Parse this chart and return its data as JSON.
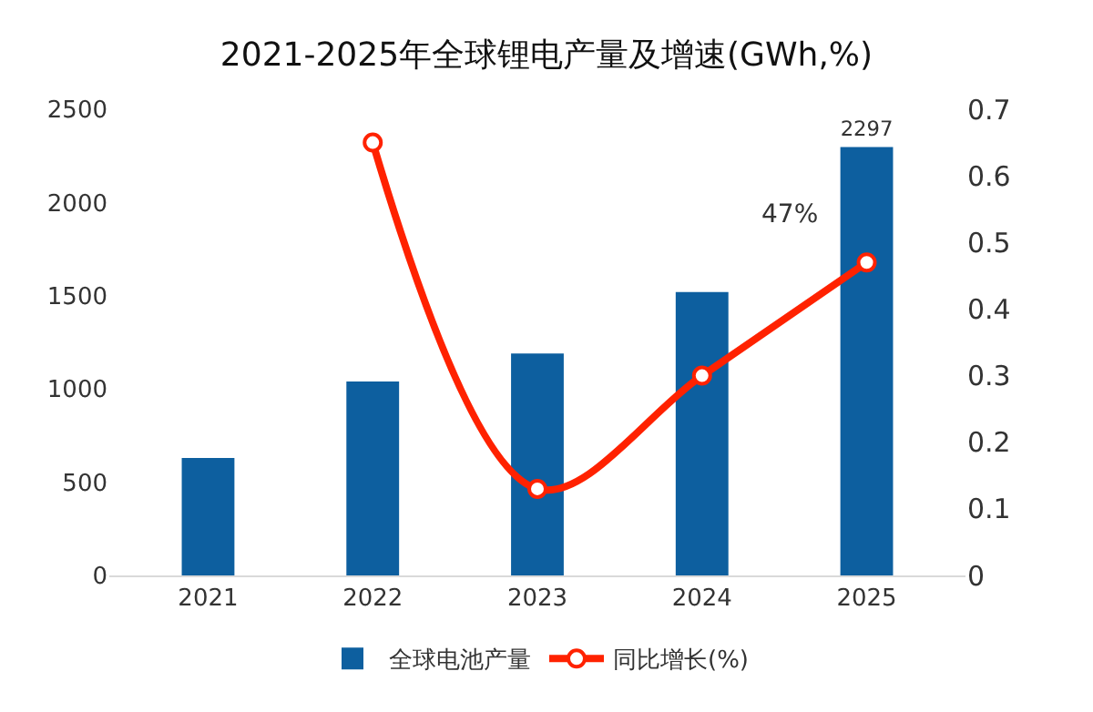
{
  "chart_data": {
    "type": "bar",
    "title": "2021-2025年全球锂电产量及增速(GWh,%)",
    "categories": [
      "2021",
      "2022",
      "2023",
      "2024",
      "2025"
    ],
    "series": [
      {
        "name": "全球电池产量",
        "color": "#0d5f9f",
        "values": [
          630,
          1040,
          1190,
          1520,
          2297
        ],
        "value_labels": [
          null,
          null,
          null,
          null,
          "2297"
        ]
      },
      {
        "name": "同比增长(%)",
        "type": "line",
        "axis": "y2",
        "color": "#ff2200",
        "values": [
          null,
          0.65,
          0.13,
          0.3,
          0.47
        ],
        "value_labels": [
          null,
          null,
          null,
          null,
          "47%"
        ]
      }
    ],
    "ylim": [
      0,
      2500
    ],
    "yticks": [
      0,
      500,
      1000,
      1500,
      2000,
      2500
    ],
    "y2lim": [
      0,
      0.7
    ],
    "y2ticks": [
      0,
      0.1,
      0.2,
      0.3,
      0.4,
      0.5,
      0.6,
      0.7
    ],
    "grid": false,
    "legend": "bottom",
    "marker": "circle",
    "line_style": "solid"
  }
}
